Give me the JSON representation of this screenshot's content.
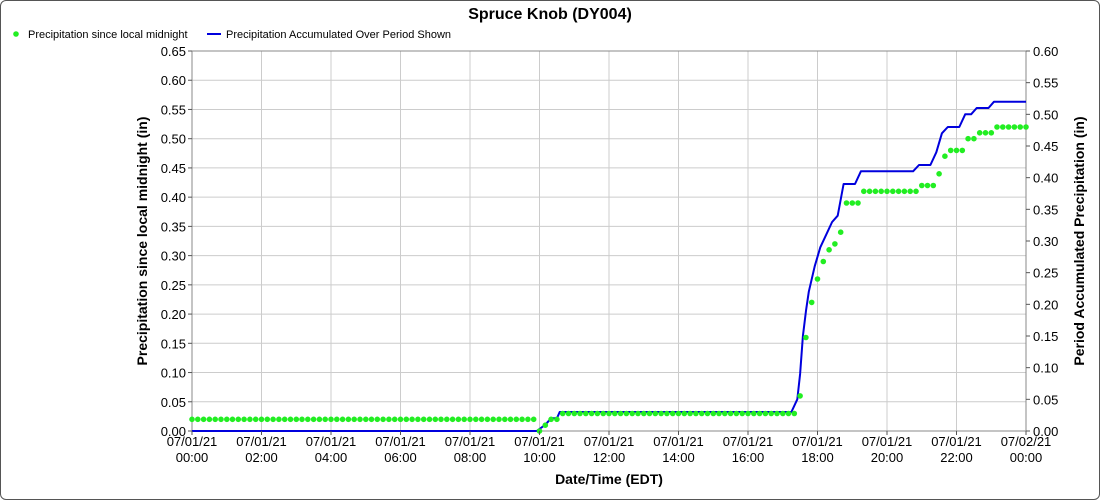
{
  "chart_data": {
    "type": "line",
    "title": "Spruce Knob (DY004)",
    "xlabel": "Date/Time (EDT)",
    "ylabel_left": "Precipitation since local midnight (in)",
    "ylabel_right": "Period Accumulated Precipitation (in)",
    "x_tick_labels": [
      {
        "date": "07/01/21",
        "time": "00:00"
      },
      {
        "date": "07/01/21",
        "time": "02:00"
      },
      {
        "date": "07/01/21",
        "time": "04:00"
      },
      {
        "date": "07/01/21",
        "time": "06:00"
      },
      {
        "date": "07/01/21",
        "time": "08:00"
      },
      {
        "date": "07/01/21",
        "time": "10:00"
      },
      {
        "date": "07/01/21",
        "time": "12:00"
      },
      {
        "date": "07/01/21",
        "time": "14:00"
      },
      {
        "date": "07/01/21",
        "time": "16:00"
      },
      {
        "date": "07/01/21",
        "time": "18:00"
      },
      {
        "date": "07/01/21",
        "time": "20:00"
      },
      {
        "date": "07/01/21",
        "time": "22:00"
      },
      {
        "date": "07/02/21",
        "time": "00:00"
      }
    ],
    "x_hours_range": [
      0,
      24
    ],
    "ylim_left": [
      0,
      0.65
    ],
    "ylim_right": [
      0,
      0.6
    ],
    "yticks_left": [
      "0.00",
      "0.05",
      "0.10",
      "0.15",
      "0.20",
      "0.25",
      "0.30",
      "0.35",
      "0.40",
      "0.45",
      "0.50",
      "0.55",
      "0.60",
      "0.65"
    ],
    "yticks_right": [
      "0.00",
      "0.05",
      "0.10",
      "0.15",
      "0.20",
      "0.25",
      "0.30",
      "0.35",
      "0.40",
      "0.45",
      "0.50",
      "0.55",
      "0.60"
    ],
    "grid": true,
    "legend_placement": "top-left",
    "series": [
      {
        "name": "Precipitation since local midnight",
        "axis": "left",
        "style": "points",
        "color": "#22ee22",
        "points": [
          [
            0.0,
            0.02
          ],
          [
            10.0,
            0.0
          ],
          [
            10.08,
            0.01
          ],
          [
            10.25,
            0.02
          ],
          [
            10.42,
            0.02
          ],
          [
            10.58,
            0.03
          ],
          [
            17.25,
            0.03
          ],
          [
            17.42,
            0.06
          ],
          [
            17.58,
            0.16
          ],
          [
            17.75,
            0.22
          ],
          [
            17.92,
            0.26
          ],
          [
            18.08,
            0.29
          ],
          [
            18.25,
            0.31
          ],
          [
            18.42,
            0.32
          ],
          [
            18.58,
            0.34
          ],
          [
            18.75,
            0.39
          ],
          [
            19.08,
            0.39
          ],
          [
            19.25,
            0.41
          ],
          [
            20.75,
            0.41
          ],
          [
            20.92,
            0.42
          ],
          [
            21.25,
            0.42
          ],
          [
            21.42,
            0.44
          ],
          [
            21.58,
            0.47
          ],
          [
            21.75,
            0.48
          ],
          [
            22.08,
            0.48
          ],
          [
            22.25,
            0.5
          ],
          [
            22.42,
            0.5
          ],
          [
            22.58,
            0.51
          ],
          [
            22.92,
            0.51
          ],
          [
            23.08,
            0.52
          ],
          [
            24.0,
            0.52
          ]
        ]
      },
      {
        "name": "Precipitation Accumulated Over Period Shown",
        "axis": "right",
        "style": "line",
        "color": "#0000dd",
        "points": [
          [
            0.0,
            0.0
          ],
          [
            9.92,
            0.0
          ],
          [
            10.17,
            0.01
          ],
          [
            10.33,
            0.02
          ],
          [
            10.5,
            0.02
          ],
          [
            10.58,
            0.03
          ],
          [
            17.25,
            0.03
          ],
          [
            17.42,
            0.05
          ],
          [
            17.5,
            0.09
          ],
          [
            17.58,
            0.15
          ],
          [
            17.67,
            0.19
          ],
          [
            17.75,
            0.22
          ],
          [
            17.92,
            0.26
          ],
          [
            18.08,
            0.29
          ],
          [
            18.25,
            0.31
          ],
          [
            18.42,
            0.33
          ],
          [
            18.58,
            0.34
          ],
          [
            18.75,
            0.39
          ],
          [
            19.08,
            0.39
          ],
          [
            19.25,
            0.41
          ],
          [
            20.75,
            0.41
          ],
          [
            20.92,
            0.42
          ],
          [
            21.25,
            0.42
          ],
          [
            21.42,
            0.44
          ],
          [
            21.58,
            0.47
          ],
          [
            21.75,
            0.48
          ],
          [
            22.08,
            0.48
          ],
          [
            22.25,
            0.5
          ],
          [
            22.42,
            0.5
          ],
          [
            22.58,
            0.51
          ],
          [
            22.92,
            0.51
          ],
          [
            23.08,
            0.52
          ],
          [
            24.0,
            0.52
          ]
        ]
      }
    ]
  }
}
